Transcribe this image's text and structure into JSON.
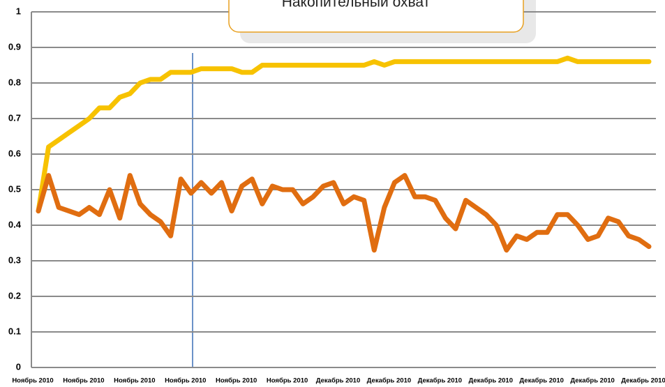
{
  "chart_data": {
    "type": "line",
    "annotation": "Накопительный охват",
    "categories": [
      "Ноябрь 2010",
      null,
      null,
      null,
      null,
      "Ноябрь 2010",
      null,
      null,
      null,
      null,
      "Ноябрь 2010",
      null,
      null,
      null,
      null,
      "Ноябрь 2010",
      null,
      null,
      null,
      null,
      "Ноябрь 2010",
      null,
      null,
      null,
      null,
      "Ноябрь 2010",
      null,
      null,
      null,
      null,
      "Декабрь 2010",
      null,
      null,
      null,
      null,
      "Декабрь 2010",
      null,
      null,
      null,
      null,
      "Декабрь 2010",
      null,
      null,
      null,
      null,
      "Декабрь 2010",
      null,
      null,
      null,
      null,
      "Декабрь 2010",
      null,
      null,
      null,
      null,
      "Декабрь 2010",
      null,
      null,
      null,
      null,
      "Декабрь 2010"
    ],
    "series": [
      {
        "name": "Накопительный охват",
        "color": "#f7c200",
        "values": [
          0.44,
          0.62,
          0.64,
          0.66,
          0.68,
          0.7,
          0.73,
          0.73,
          0.76,
          0.77,
          0.8,
          0.81,
          0.81,
          0.83,
          0.83,
          0.83,
          0.84,
          0.84,
          0.84,
          0.84,
          0.83,
          0.83,
          0.85,
          0.85,
          0.85,
          0.85,
          0.85,
          0.85,
          0.85,
          0.85,
          0.85,
          0.85,
          0.85,
          0.86,
          0.85,
          0.86,
          0.86,
          0.86,
          0.86,
          0.86,
          0.86,
          0.86,
          0.86,
          0.86,
          0.86,
          0.86,
          0.86,
          0.86,
          0.86,
          0.86,
          0.86,
          0.86,
          0.87,
          0.86,
          0.86,
          0.86,
          0.86,
          0.86,
          0.86,
          0.86,
          0.86
        ]
      },
      {
        "color": "#e06d10",
        "values": [
          0.44,
          0.54,
          0.45,
          0.44,
          0.43,
          0.45,
          0.43,
          0.5,
          0.42,
          0.54,
          0.46,
          0.43,
          0.41,
          0.37,
          0.53,
          0.49,
          0.52,
          0.49,
          0.52,
          0.44,
          0.51,
          0.53,
          0.46,
          0.51,
          0.5,
          0.5,
          0.46,
          0.48,
          0.51,
          0.52,
          0.46,
          0.48,
          0.47,
          0.33,
          0.45,
          0.52,
          0.54,
          0.48,
          0.48,
          0.47,
          0.42,
          0.39,
          0.47,
          0.45,
          0.43,
          0.4,
          0.33,
          0.37,
          0.36,
          0.38,
          0.38,
          0.43,
          0.43,
          0.4,
          0.36,
          0.37,
          0.42,
          0.41,
          0.37,
          0.36,
          0.34
        ]
      }
    ],
    "ylim": [
      0,
      1
    ],
    "yticks": [
      0,
      0.1,
      0.2,
      0.3,
      0.4,
      0.5,
      0.6,
      0.7,
      0.8,
      0.9,
      1
    ],
    "grid": true
  }
}
